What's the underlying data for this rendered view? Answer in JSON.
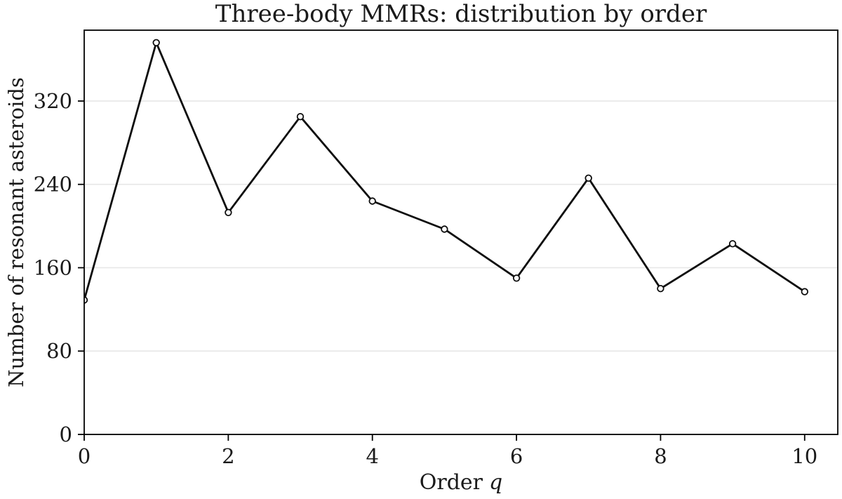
{
  "figure": {
    "title": "Three-body MMRs: distribution by order",
    "xlabel_text": "Order",
    "xlabel_var": "q",
    "ylabel": "Number of resonant asteroids"
  },
  "chart_data": {
    "type": "line",
    "title": "Three-body MMRs: distribution by order",
    "xlabel": "Order q",
    "ylabel": "Number of resonant asteroids",
    "x": [
      0,
      1,
      2,
      3,
      4,
      5,
      6,
      7,
      8,
      9,
      10
    ],
    "values": [
      129,
      376,
      213,
      305,
      224,
      197,
      150,
      246,
      140,
      183,
      137
    ],
    "xticks": [
      0,
      2,
      4,
      6,
      8,
      10
    ],
    "yticks": [
      0,
      80,
      160,
      240,
      320
    ],
    "xlim": [
      0,
      10.46
    ],
    "ylim": [
      0,
      388
    ],
    "grid": "horizontal-only",
    "legend": "none",
    "marker": "open-circle",
    "colors": {
      "line": "#0d0d0d",
      "marker_fill": "#ffffff",
      "grid": "#e7e7e7",
      "spine": "#000000",
      "text": "#1a1a1a",
      "background": "#ffffff"
    }
  }
}
